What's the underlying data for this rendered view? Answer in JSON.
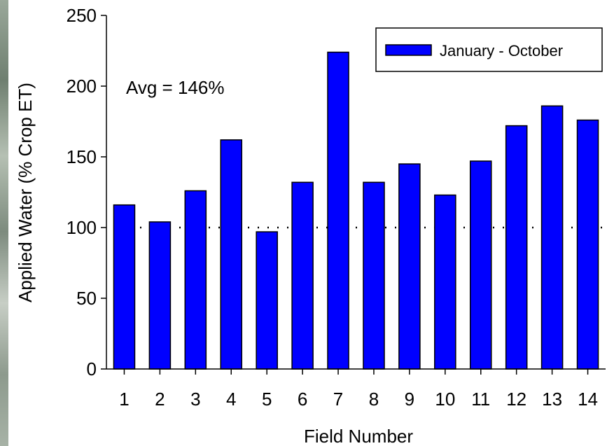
{
  "chart_data": {
    "type": "bar",
    "categories": [
      "1",
      "2",
      "3",
      "4",
      "5",
      "6",
      "7",
      "8",
      "9",
      "10",
      "11",
      "12",
      "13",
      "14"
    ],
    "series": [
      {
        "name": "January - October",
        "values": [
          116,
          104,
          126,
          162,
          97,
          132,
          224,
          132,
          145,
          123,
          147,
          172,
          186,
          176
        ]
      }
    ],
    "xlabel": "Field Number",
    "ylabel": "Applied Water (% Crop ET)",
    "ylim": [
      0,
      250
    ],
    "yticks": [
      "0",
      "50",
      "100",
      "150",
      "200",
      "250"
    ],
    "reference_line": {
      "value": 100,
      "style": "dotted"
    },
    "annotation": "Avg = 146%",
    "legend": {
      "placement": "top-right",
      "label": "January - October"
    },
    "grid": false,
    "colors": {
      "bar": "#0000ff",
      "bar_edge": "#000000",
      "axis": "#000000",
      "background": "#ffffff"
    }
  }
}
